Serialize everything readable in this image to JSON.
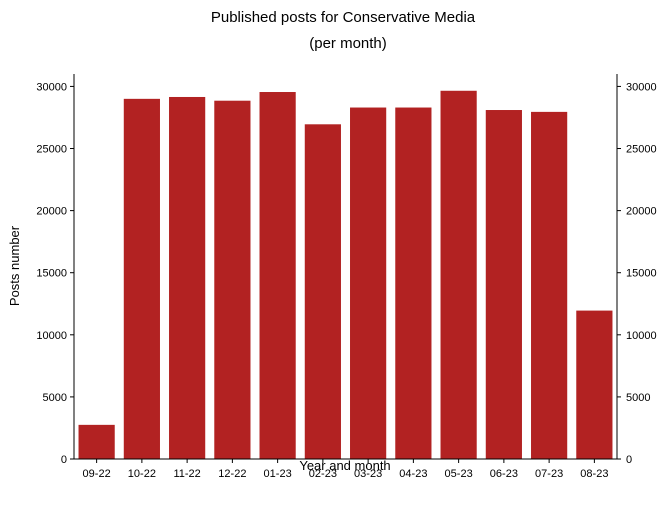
{
  "chart_data": {
    "type": "bar",
    "title": "Published posts for Conservative Media",
    "subtitle": "(per month)",
    "xlabel": "Year and month",
    "ylabel": "Posts number",
    "categories": [
      "09-22",
      "10-22",
      "11-22",
      "12-22",
      "01-23",
      "02-23",
      "03-23",
      "04-23",
      "05-23",
      "06-23",
      "07-23",
      "08-23"
    ],
    "values": [
      2750,
      29000,
      29150,
      28850,
      29550,
      26950,
      28300,
      28300,
      29650,
      28100,
      27950,
      11950
    ],
    "ylim": [
      0,
      31000
    ],
    "yticks": [
      0,
      5000,
      10000,
      15000,
      20000,
      25000,
      30000
    ],
    "grid": false,
    "legend": "none",
    "bar_color": "#b22222",
    "secondary_y_axis": true
  }
}
